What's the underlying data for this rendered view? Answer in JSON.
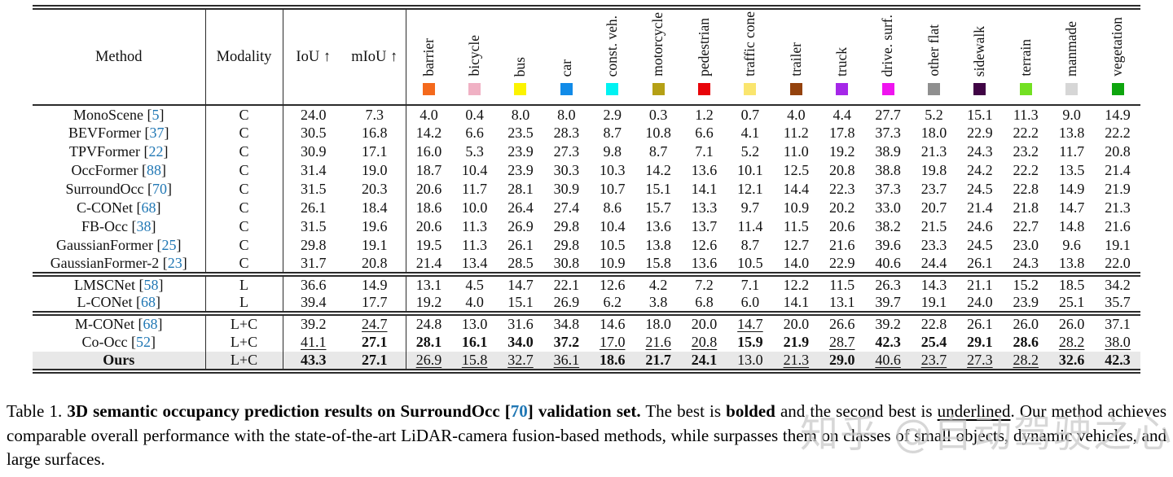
{
  "colors": {
    "cite": "#2077B4",
    "highlight_row": "#E8E8E8",
    "watermark": "#C9C9C9"
  },
  "header": {
    "method": "Method",
    "modality": "Modality",
    "iou": "IoU ↑",
    "miou": "mIoU ↑"
  },
  "classes": [
    {
      "name": "barrier",
      "color": "#F4691C"
    },
    {
      "name": "bicycle",
      "color": "#F0B1C4"
    },
    {
      "name": "bus",
      "color": "#FCF300"
    },
    {
      "name": "car",
      "color": "#118BE8"
    },
    {
      "name": "const. veh.",
      "color": "#00F2F2"
    },
    {
      "name": "motorcycle",
      "color": "#B5A015"
    },
    {
      "name": "pedestrian",
      "color": "#E80409"
    },
    {
      "name": "traffic cone",
      "color": "#FAE56E"
    },
    {
      "name": "trailer",
      "color": "#94420D"
    },
    {
      "name": "truck",
      "color": "#A527E8"
    },
    {
      "name": "drive. surf.",
      "color": "#EF14EF"
    },
    {
      "name": "other flat",
      "color": "#8F8F8F"
    },
    {
      "name": "sidewalk",
      "color": "#400445"
    },
    {
      "name": "terrain",
      "color": "#73E022"
    },
    {
      "name": "manmade",
      "color": "#D6D6D6"
    },
    {
      "name": "vegetation",
      "color": "#0EA50E"
    }
  ],
  "groups": [
    {
      "rows": [
        {
          "method": "MonoScene",
          "cite": "5",
          "modality": "C",
          "iou": "24.0",
          "miou": "7.3",
          "vals": [
            "4.0",
            "0.4",
            "8.0",
            "8.0",
            "2.9",
            "0.3",
            "1.2",
            "0.7",
            "4.0",
            "4.4",
            "27.7",
            "5.2",
            "15.1",
            "11.3",
            "9.0",
            "14.9"
          ]
        },
        {
          "method": "BEVFormer",
          "cite": "37",
          "modality": "C",
          "iou": "30.5",
          "miou": "16.8",
          "vals": [
            "14.2",
            "6.6",
            "23.5",
            "28.3",
            "8.7",
            "10.8",
            "6.6",
            "4.1",
            "11.2",
            "17.8",
            "37.3",
            "18.0",
            "22.9",
            "22.2",
            "13.8",
            "22.2"
          ]
        },
        {
          "method": "TPVFormer",
          "cite": "22",
          "modality": "C",
          "iou": "30.9",
          "miou": "17.1",
          "vals": [
            "16.0",
            "5.3",
            "23.9",
            "27.3",
            "9.8",
            "8.7",
            "7.1",
            "5.2",
            "11.0",
            "19.2",
            "38.9",
            "21.3",
            "24.3",
            "23.2",
            "11.7",
            "20.8"
          ]
        },
        {
          "method": "OccFormer",
          "cite": "88",
          "modality": "C",
          "iou": "31.4",
          "miou": "19.0",
          "vals": [
            "18.7",
            "10.4",
            "23.9",
            "30.3",
            "10.3",
            "14.2",
            "13.6",
            "10.1",
            "12.5",
            "20.8",
            "38.8",
            "19.8",
            "24.2",
            "22.2",
            "13.5",
            "21.4"
          ]
        },
        {
          "method": "SurroundOcc",
          "cite": "70",
          "modality": "C",
          "iou": "31.5",
          "miou": "20.3",
          "vals": [
            "20.6",
            "11.7",
            "28.1",
            "30.9",
            "10.7",
            "15.1",
            "14.1",
            "12.1",
            "14.4",
            "22.3",
            "37.3",
            "23.7",
            "24.5",
            "22.8",
            "14.9",
            "21.9"
          ]
        },
        {
          "method": "C-CONet",
          "cite": "68",
          "modality": "C",
          "iou": "26.1",
          "miou": "18.4",
          "vals": [
            "18.6",
            "10.0",
            "26.4",
            "27.4",
            "8.6",
            "15.7",
            "13.3",
            "9.7",
            "10.9",
            "20.2",
            "33.0",
            "20.7",
            "21.4",
            "21.8",
            "14.7",
            "21.3"
          ]
        },
        {
          "method": "FB-Occ",
          "cite": "38",
          "modality": "C",
          "iou": "31.5",
          "miou": "19.6",
          "vals": [
            "20.6",
            "11.3",
            "26.9",
            "29.8",
            "10.4",
            "13.6",
            "13.7",
            "11.4",
            "11.5",
            "20.6",
            "38.2",
            "21.5",
            "24.6",
            "22.7",
            "14.8",
            "21.6"
          ]
        },
        {
          "method": "GaussianFormer",
          "cite": "25",
          "modality": "C",
          "iou": "29.8",
          "miou": "19.1",
          "vals": [
            "19.5",
            "11.3",
            "26.1",
            "29.8",
            "10.5",
            "13.8",
            "12.6",
            "8.7",
            "12.7",
            "21.6",
            "39.6",
            "23.3",
            "24.5",
            "23.0",
            "9.6",
            "19.1"
          ]
        },
        {
          "method": "GaussianFormer-2",
          "cite": "23",
          "modality": "C",
          "iou": "31.7",
          "miou": "20.8",
          "vals": [
            "21.4",
            "13.4",
            "28.5",
            "30.8",
            "10.9",
            "15.8",
            "13.6",
            "10.5",
            "14.0",
            "22.9",
            "40.6",
            "24.4",
            "26.1",
            "24.3",
            "13.8",
            "22.0"
          ]
        }
      ]
    },
    {
      "rows": [
        {
          "method": "LMSCNet",
          "cite": "58",
          "modality": "L",
          "iou": "36.6",
          "miou": "14.9",
          "vals": [
            "13.1",
            "4.5",
            "14.7",
            "22.1",
            "12.6",
            "4.2",
            "7.2",
            "7.1",
            "12.2",
            "11.5",
            "26.3",
            "14.3",
            "21.1",
            "15.2",
            "18.5",
            "34.2"
          ]
        },
        {
          "method": "L-CONet",
          "cite": "68",
          "modality": "L",
          "iou": "39.4",
          "miou": "17.7",
          "vals": [
            "19.2",
            "4.0",
            "15.1",
            "26.9",
            "6.2",
            "3.8",
            "6.8",
            "6.0",
            "14.1",
            "13.1",
            "39.7",
            "19.1",
            "24.0",
            "23.9",
            "25.1",
            "35.7"
          ]
        }
      ]
    },
    {
      "rows": [
        {
          "method": "M-CONet",
          "cite": "68",
          "modality": "L+C",
          "iou": "39.2",
          "miou": "u|24.7",
          "vals": [
            "24.8",
            "13.0",
            "31.6",
            "34.8",
            "14.6",
            "18.0",
            "20.0",
            "u|14.7",
            "20.0",
            "26.6",
            "39.2",
            "22.8",
            "26.1",
            "26.0",
            "26.0",
            "37.1"
          ]
        },
        {
          "method": "Co-Occ",
          "cite": "52",
          "modality": "L+C",
          "iou": "u|41.1",
          "miou": "b|27.1",
          "vals": [
            "b|28.1",
            "b|16.1",
            "b|34.0",
            "b|37.2",
            "u|17.0",
            "u|21.6",
            "u|20.8",
            "b|15.9",
            "b|21.9",
            "u|28.7",
            "b|42.3",
            "b|25.4",
            "b|29.1",
            "b|28.6",
            "u|28.2",
            "u|38.0"
          ]
        },
        {
          "method": "Ours",
          "cite": null,
          "bold_method": true,
          "highlight": true,
          "modality": "L+C",
          "iou": "b|43.3",
          "miou": "b|27.1",
          "vals": [
            "u|26.9",
            "u|15.8",
            "u|32.7",
            "u|36.1",
            "b|18.6",
            "b|21.7",
            "b|24.1",
            "13.0",
            "u|21.3",
            "b|29.0",
            "u|40.6",
            "u|23.7",
            "u|27.3",
            "u|28.2",
            "b|32.6",
            "b|42.3"
          ]
        }
      ]
    }
  ],
  "caption": {
    "segments": [
      {
        "s": "p",
        "t": "Table 1. "
      },
      {
        "s": "b",
        "t": "3D semantic occupancy prediction results on SurroundOcc ["
      },
      {
        "s": "bc",
        "t": "70"
      },
      {
        "s": "b",
        "t": "] validation set."
      },
      {
        "s": "p",
        "t": " The best is "
      },
      {
        "s": "b",
        "t": "bolded"
      },
      {
        "s": "p",
        "t": " and the second best is "
      },
      {
        "s": "u",
        "t": "underlined"
      },
      {
        "s": "p",
        "t": ". Our method achieves comparable overall performance with the state-of-the-art LiDAR-camera fusion-based methods, while surpasses them on classes of small objects, dynamic vehicles, and large surfaces."
      }
    ]
  },
  "watermark": {
    "text": "知乎 @自动驾驶之心"
  }
}
